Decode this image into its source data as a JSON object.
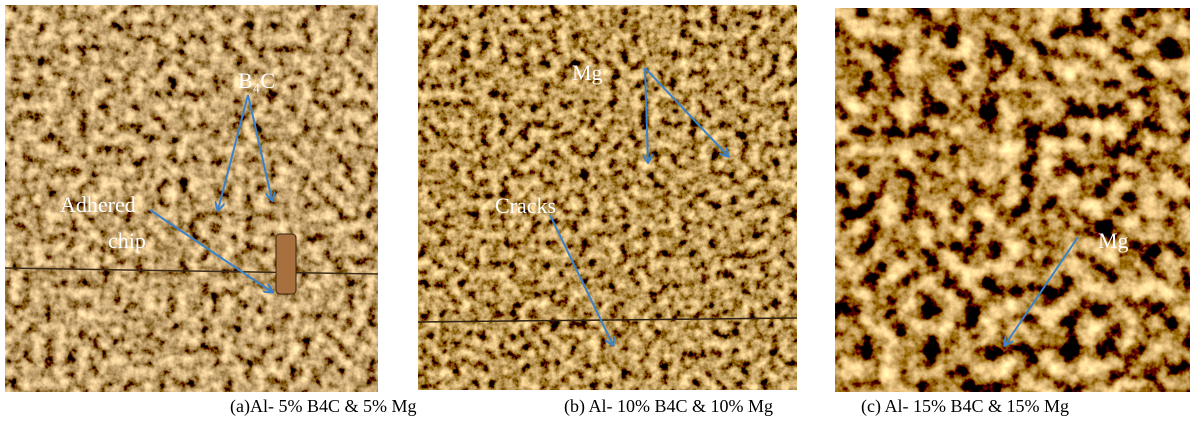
{
  "panels": [
    {
      "annotations": [
        "B₄C",
        "Adhered",
        "chip"
      ],
      "caption": "(a)Al- 5% B4C & 5% Mg"
    },
    {
      "annotations": [
        "Mg",
        "Cracks"
      ],
      "caption": "(b) Al- 10% B4C & 10% Mg"
    },
    {
      "annotations": [
        "Mg"
      ],
      "caption": "(c) Al- 15% B4C & 15% Mg"
    }
  ]
}
